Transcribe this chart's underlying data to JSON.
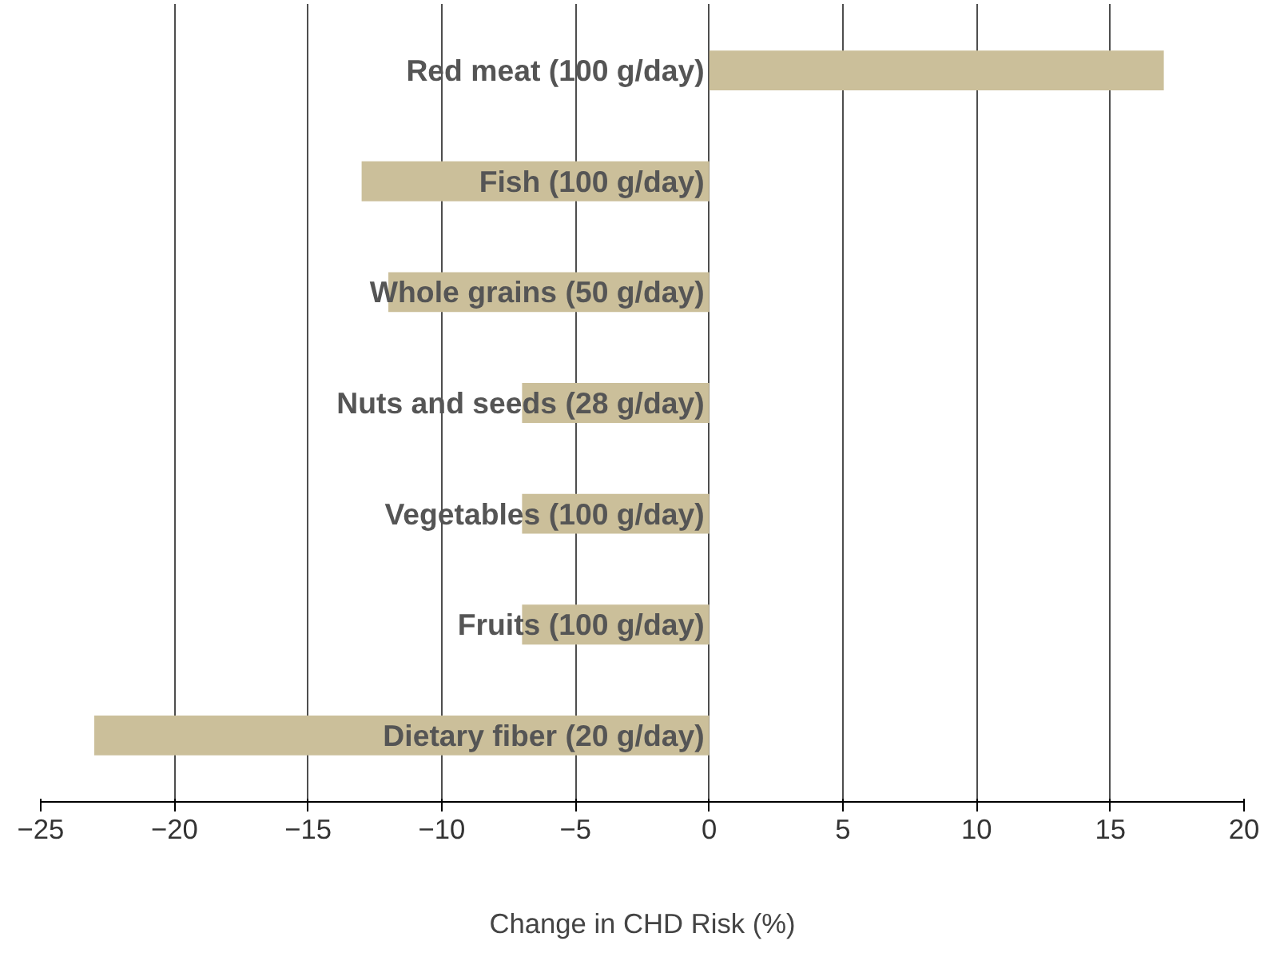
{
  "chart_data": {
    "type": "bar",
    "orientation": "horizontal",
    "xlabel": "Change in CHD Risk (%)",
    "categories": [
      "Red meat (100 g/day)",
      "Fish (100 g/day)",
      "Whole grains (50 g/day)",
      "Nuts and seeds (28 g/day)",
      "Vegetables (100 g/day)",
      "Fruits (100 g/day)",
      "Dietary fiber (20 g/day)"
    ],
    "values": [
      17,
      -13,
      -12,
      -7,
      -7,
      -7,
      -23
    ],
    "color": "#cbbf9a",
    "xlim": [
      -25,
      20
    ],
    "xticks": [
      -25,
      -20,
      -15,
      -10,
      -5,
      0,
      5,
      10,
      15,
      20
    ],
    "grid": "x"
  }
}
